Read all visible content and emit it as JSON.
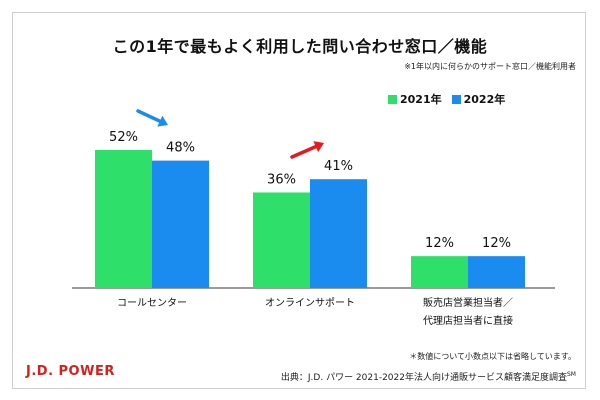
{
  "title": "この1年で最もよく利用した問い合わせ窓口／機能",
  "subnote": "※1年以内に何らかのサポート窓口／機能利用者",
  "legend": [
    {
      "label": "2021年",
      "color": "#2ee06a"
    },
    {
      "label": "2022年",
      "color": "#1a8cf0"
    }
  ],
  "chart_data": {
    "type": "bar",
    "title": "この1年で最もよく利用した問い合わせ窓口／機能",
    "categories": [
      "コールセンター",
      "オンラインサポート",
      "販売店営業担当者／代理店担当者に直接"
    ],
    "category_lines": [
      [
        "コールセンター"
      ],
      [
        "オンラインサポート"
      ],
      [
        "販売店営業担当者／",
        "代理店担当者に直接"
      ]
    ],
    "series": [
      {
        "name": "2021年",
        "values": [
          52,
          36,
          12
        ],
        "labels": [
          "52%",
          "36%",
          "12%"
        ],
        "color": "#2ee06a"
      },
      {
        "name": "2022年",
        "values": [
          48,
          41,
          12
        ],
        "labels": [
          "48%",
          "41%",
          "12%"
        ],
        "color": "#1a8cf0"
      }
    ],
    "ylim": [
      0,
      52
    ],
    "xlabel": "",
    "ylabel": "",
    "trend_arrows": [
      {
        "category_index": 0,
        "direction": "down",
        "color": "#1a8cf0"
      },
      {
        "category_index": 1,
        "direction": "up",
        "color": "#e8191e"
      }
    ]
  },
  "footnote": "＊数値について小数点以下は省略しています。",
  "source": {
    "text": "出典：J.D. パワー 2021-2022年法人向け通販サービス顧客満足度調査",
    "mark": "SM"
  },
  "logo": "J.D. POWER"
}
